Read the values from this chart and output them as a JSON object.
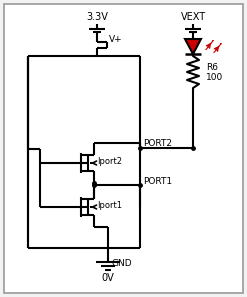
{
  "bg_color": "#f2f2f2",
  "border_color": "#999999",
  "line_color": "#000000",
  "text_color": "#000000",
  "red_color": "#cc0000",
  "figsize": [
    2.47,
    2.97
  ],
  "dpi": 100,
  "labels": {
    "vdd": "3.3V",
    "vplus": "V+",
    "vext": "VEXT",
    "gnd": "GND",
    "zero_v": "0V",
    "port2": "PORT2",
    "port1": "PORT1",
    "iport2": "Iport2",
    "iport1": "Iport1",
    "r6": "R6",
    "r6_val": "100"
  }
}
